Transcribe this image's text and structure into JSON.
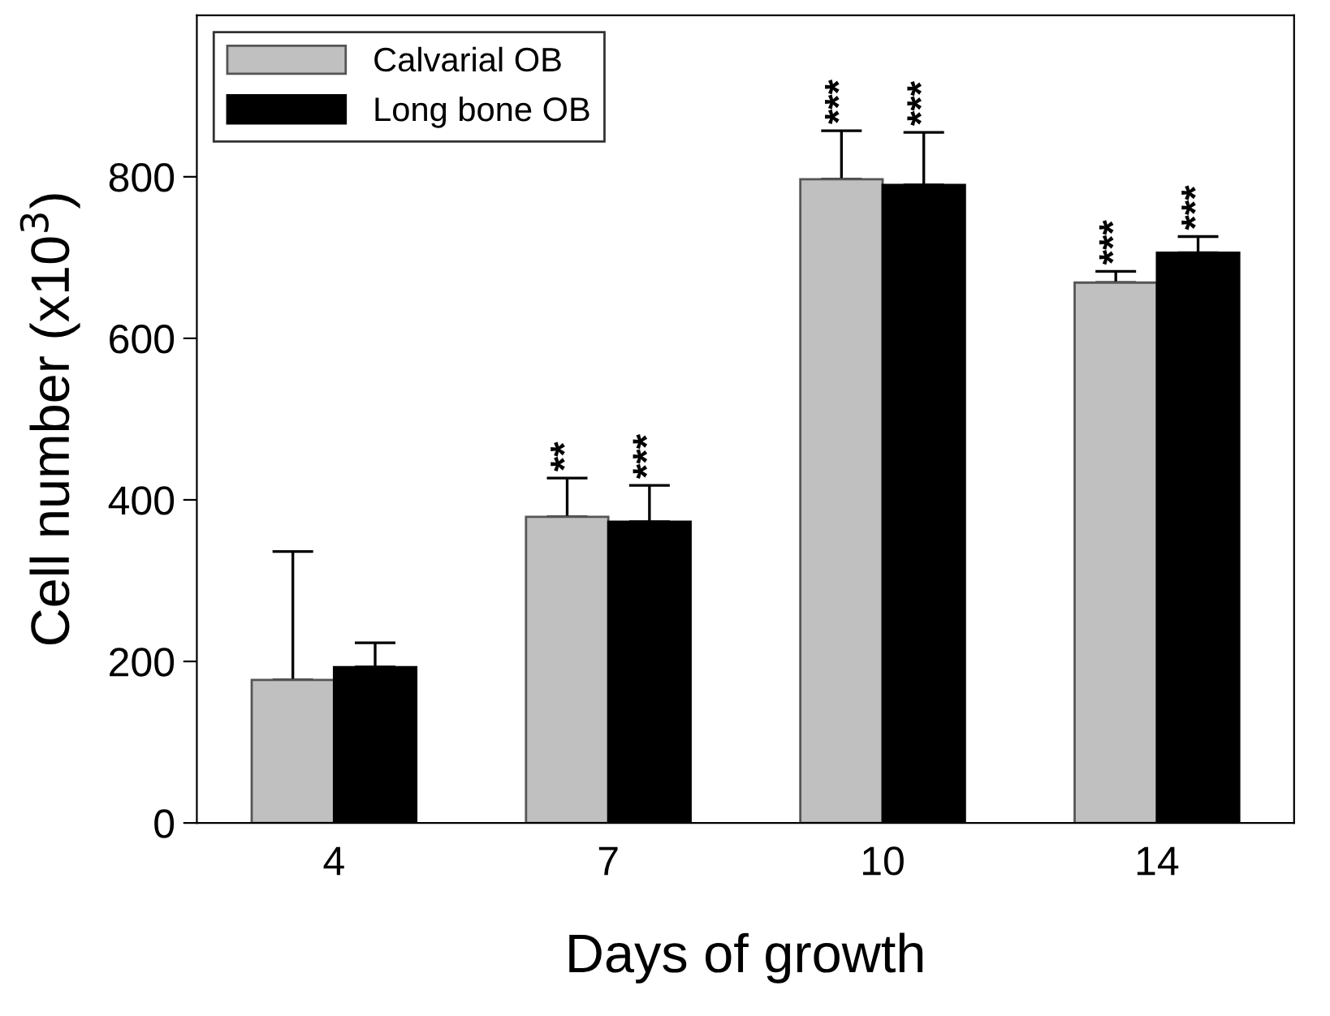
{
  "chart_data": {
    "type": "bar",
    "xlabel": "Days of growth",
    "ylabel": "Cell number (x10$^{3}$)",
    "categories": [
      "4",
      "7",
      "10",
      "14"
    ],
    "series": [
      {
        "name": "Calvarial OB",
        "color": "#c0c0c0",
        "values": [
          177,
          379,
          797,
          669
        ],
        "errors": [
          159,
          48,
          60,
          14
        ]
      },
      {
        "name": "Long bone OB",
        "color": "#000000",
        "values": [
          193,
          373,
          790,
          706
        ],
        "errors": [
          30,
          45,
          65,
          20
        ]
      }
    ],
    "ylim": [
      0,
      1000
    ],
    "yticks": [
      0,
      200,
      400,
      600,
      800
    ],
    "grid": false,
    "legend": "top left",
    "annotations": [
      "**",
      "***",
      "***",
      "***",
      "***",
      "***"
    ]
  }
}
